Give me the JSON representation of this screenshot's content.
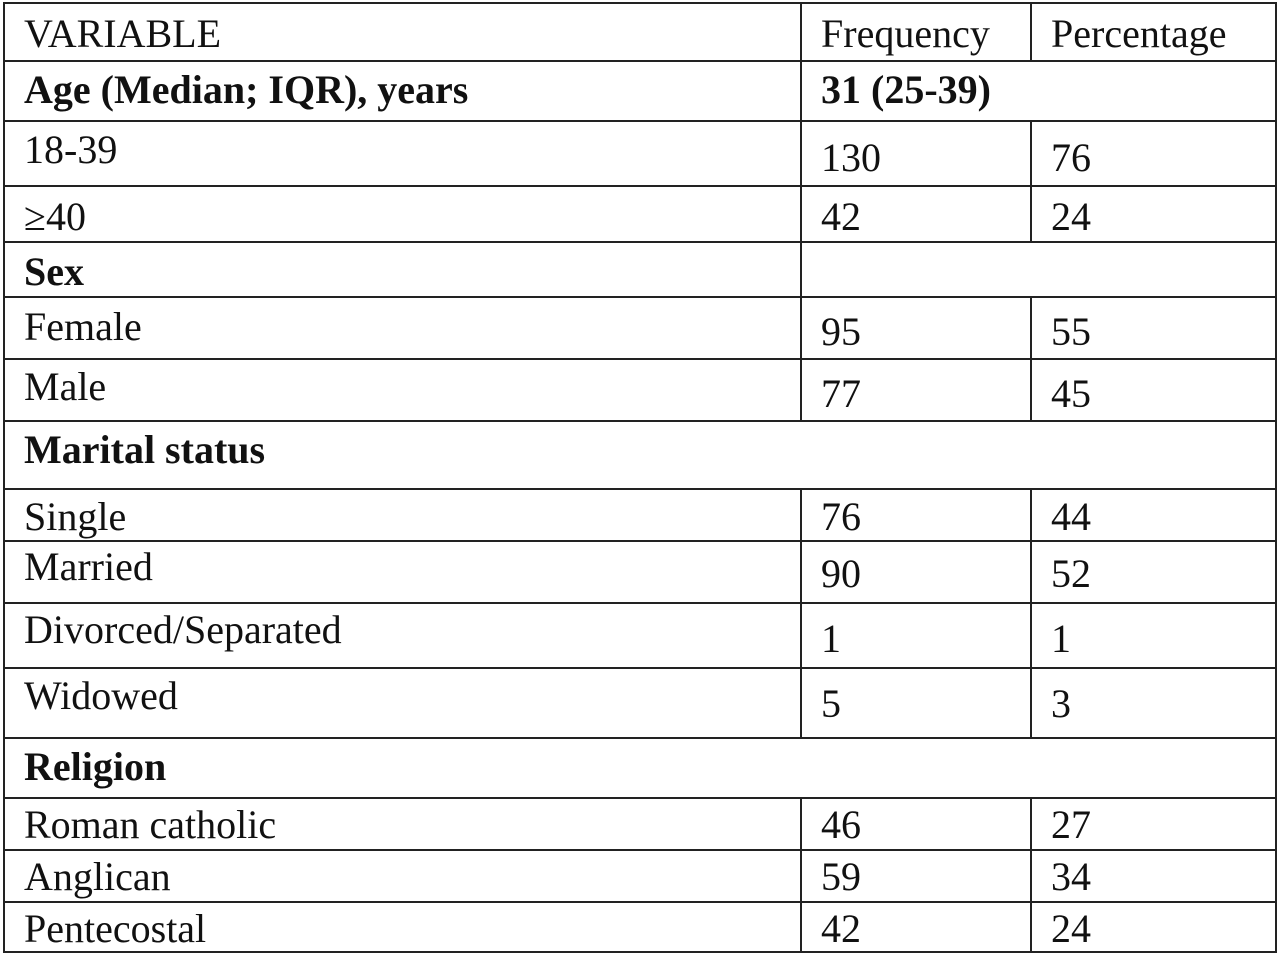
{
  "header": {
    "variable": "VARIABLE",
    "frequency": "Frequency",
    "percentage": "Percentage"
  },
  "age": {
    "label": "Age (Median; IQR), years",
    "value": "31 (25-39)",
    "rows": [
      {
        "label": "18-39",
        "frequency": "130",
        "percentage": "76"
      },
      {
        "label": "≥40",
        "frequency": "42",
        "percentage": "24"
      }
    ]
  },
  "sex": {
    "label": "Sex",
    "rows": [
      {
        "label": "Female",
        "frequency": "95",
        "percentage": "55"
      },
      {
        "label": "Male",
        "frequency": "77",
        "percentage": "45"
      }
    ]
  },
  "marital": {
    "label": "Marital status",
    "rows": [
      {
        "label": "Single",
        "frequency": "76",
        "percentage": "44"
      },
      {
        "label": "Married",
        "frequency": "90",
        "percentage": "52"
      },
      {
        "label": "Divorced/Separated",
        "frequency": "1",
        "percentage": "1"
      },
      {
        "label": "Widowed",
        "frequency": "5",
        "percentage": "3"
      }
    ]
  },
  "religion": {
    "label": "Religion",
    "rows": [
      {
        "label": "Roman catholic",
        "frequency": "46",
        "percentage": "27"
      },
      {
        "label": "Anglican",
        "frequency": "59",
        "percentage": "34"
      },
      {
        "label": "Pentecostal",
        "frequency": "42",
        "percentage": "24"
      }
    ]
  }
}
